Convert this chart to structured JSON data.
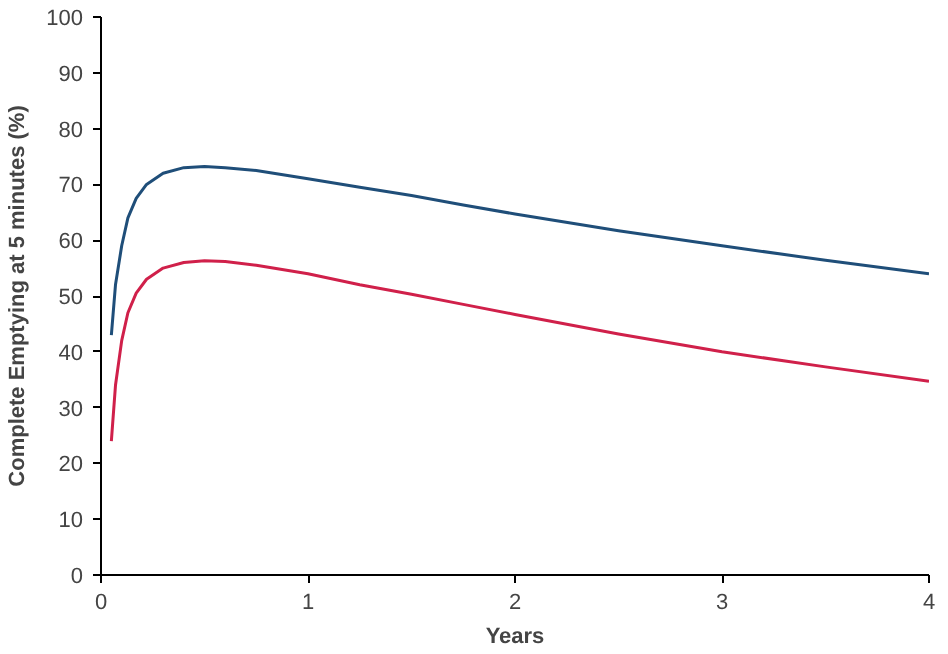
{
  "chart_data": {
    "type": "line",
    "xlabel": "Years",
    "ylabel": "Complete Emptying at 5 minutes (%)",
    "xlim": [
      0,
      4
    ],
    "xticks": [
      0,
      1,
      2,
      3,
      4
    ],
    "ylim": [
      0,
      100
    ],
    "yticks": [
      0,
      10,
      20,
      30,
      40,
      50,
      60,
      70,
      80,
      90,
      100
    ],
    "grid": false,
    "marker": "none",
    "line_style": "solid",
    "series": [
      {
        "color": "#1f4e79",
        "x": [
          0.05,
          0.07,
          0.1,
          0.13,
          0.17,
          0.22,
          0.3,
          0.4,
          0.5,
          0.6,
          0.75,
          1,
          1.25,
          1.5,
          1.75,
          2,
          2.5,
          3,
          3.5,
          4
        ],
        "values": [
          43,
          52,
          59,
          64,
          67.5,
          70,
          72,
          73,
          73.2,
          73,
          72.5,
          71,
          69.5,
          68,
          66.3,
          64.7,
          61.7,
          59,
          56.4,
          54
        ]
      },
      {
        "color": "#d0204a",
        "x": [
          0.05,
          0.07,
          0.1,
          0.13,
          0.17,
          0.22,
          0.3,
          0.4,
          0.5,
          0.6,
          0.75,
          1,
          1.25,
          1.5,
          1.75,
          2,
          2.5,
          3,
          3.5,
          4
        ],
        "values": [
          24,
          34,
          42,
          47,
          50.5,
          53,
          55,
          56,
          56.3,
          56.2,
          55.5,
          54,
          52,
          50.3,
          48.5,
          46.7,
          43.2,
          40,
          37.3,
          34.7
        ]
      }
    ]
  }
}
